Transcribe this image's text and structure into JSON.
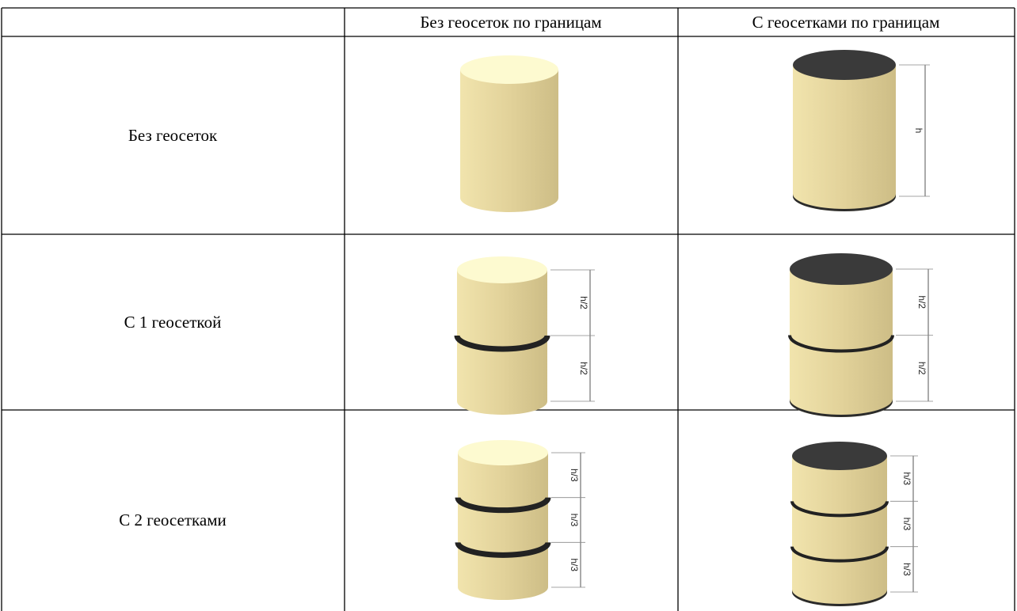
{
  "table": {
    "columns": [
      "Без геосеток по границам",
      "С геосетками по границам"
    ],
    "rows": [
      {
        "label": "Без геосеток",
        "right_dims": [
          "h"
        ]
      },
      {
        "label": "С 1 геосеткой",
        "left_dims": [
          "h/2",
          "h/2"
        ],
        "right_dims": [
          "h/2",
          "h/2"
        ]
      },
      {
        "label": "С 2 геосетками",
        "left_dims": [
          "h/3",
          "h/3",
          "h/3"
        ],
        "right_dims": [
          "h/3",
          "h/3",
          "h/3"
        ]
      }
    ]
  }
}
